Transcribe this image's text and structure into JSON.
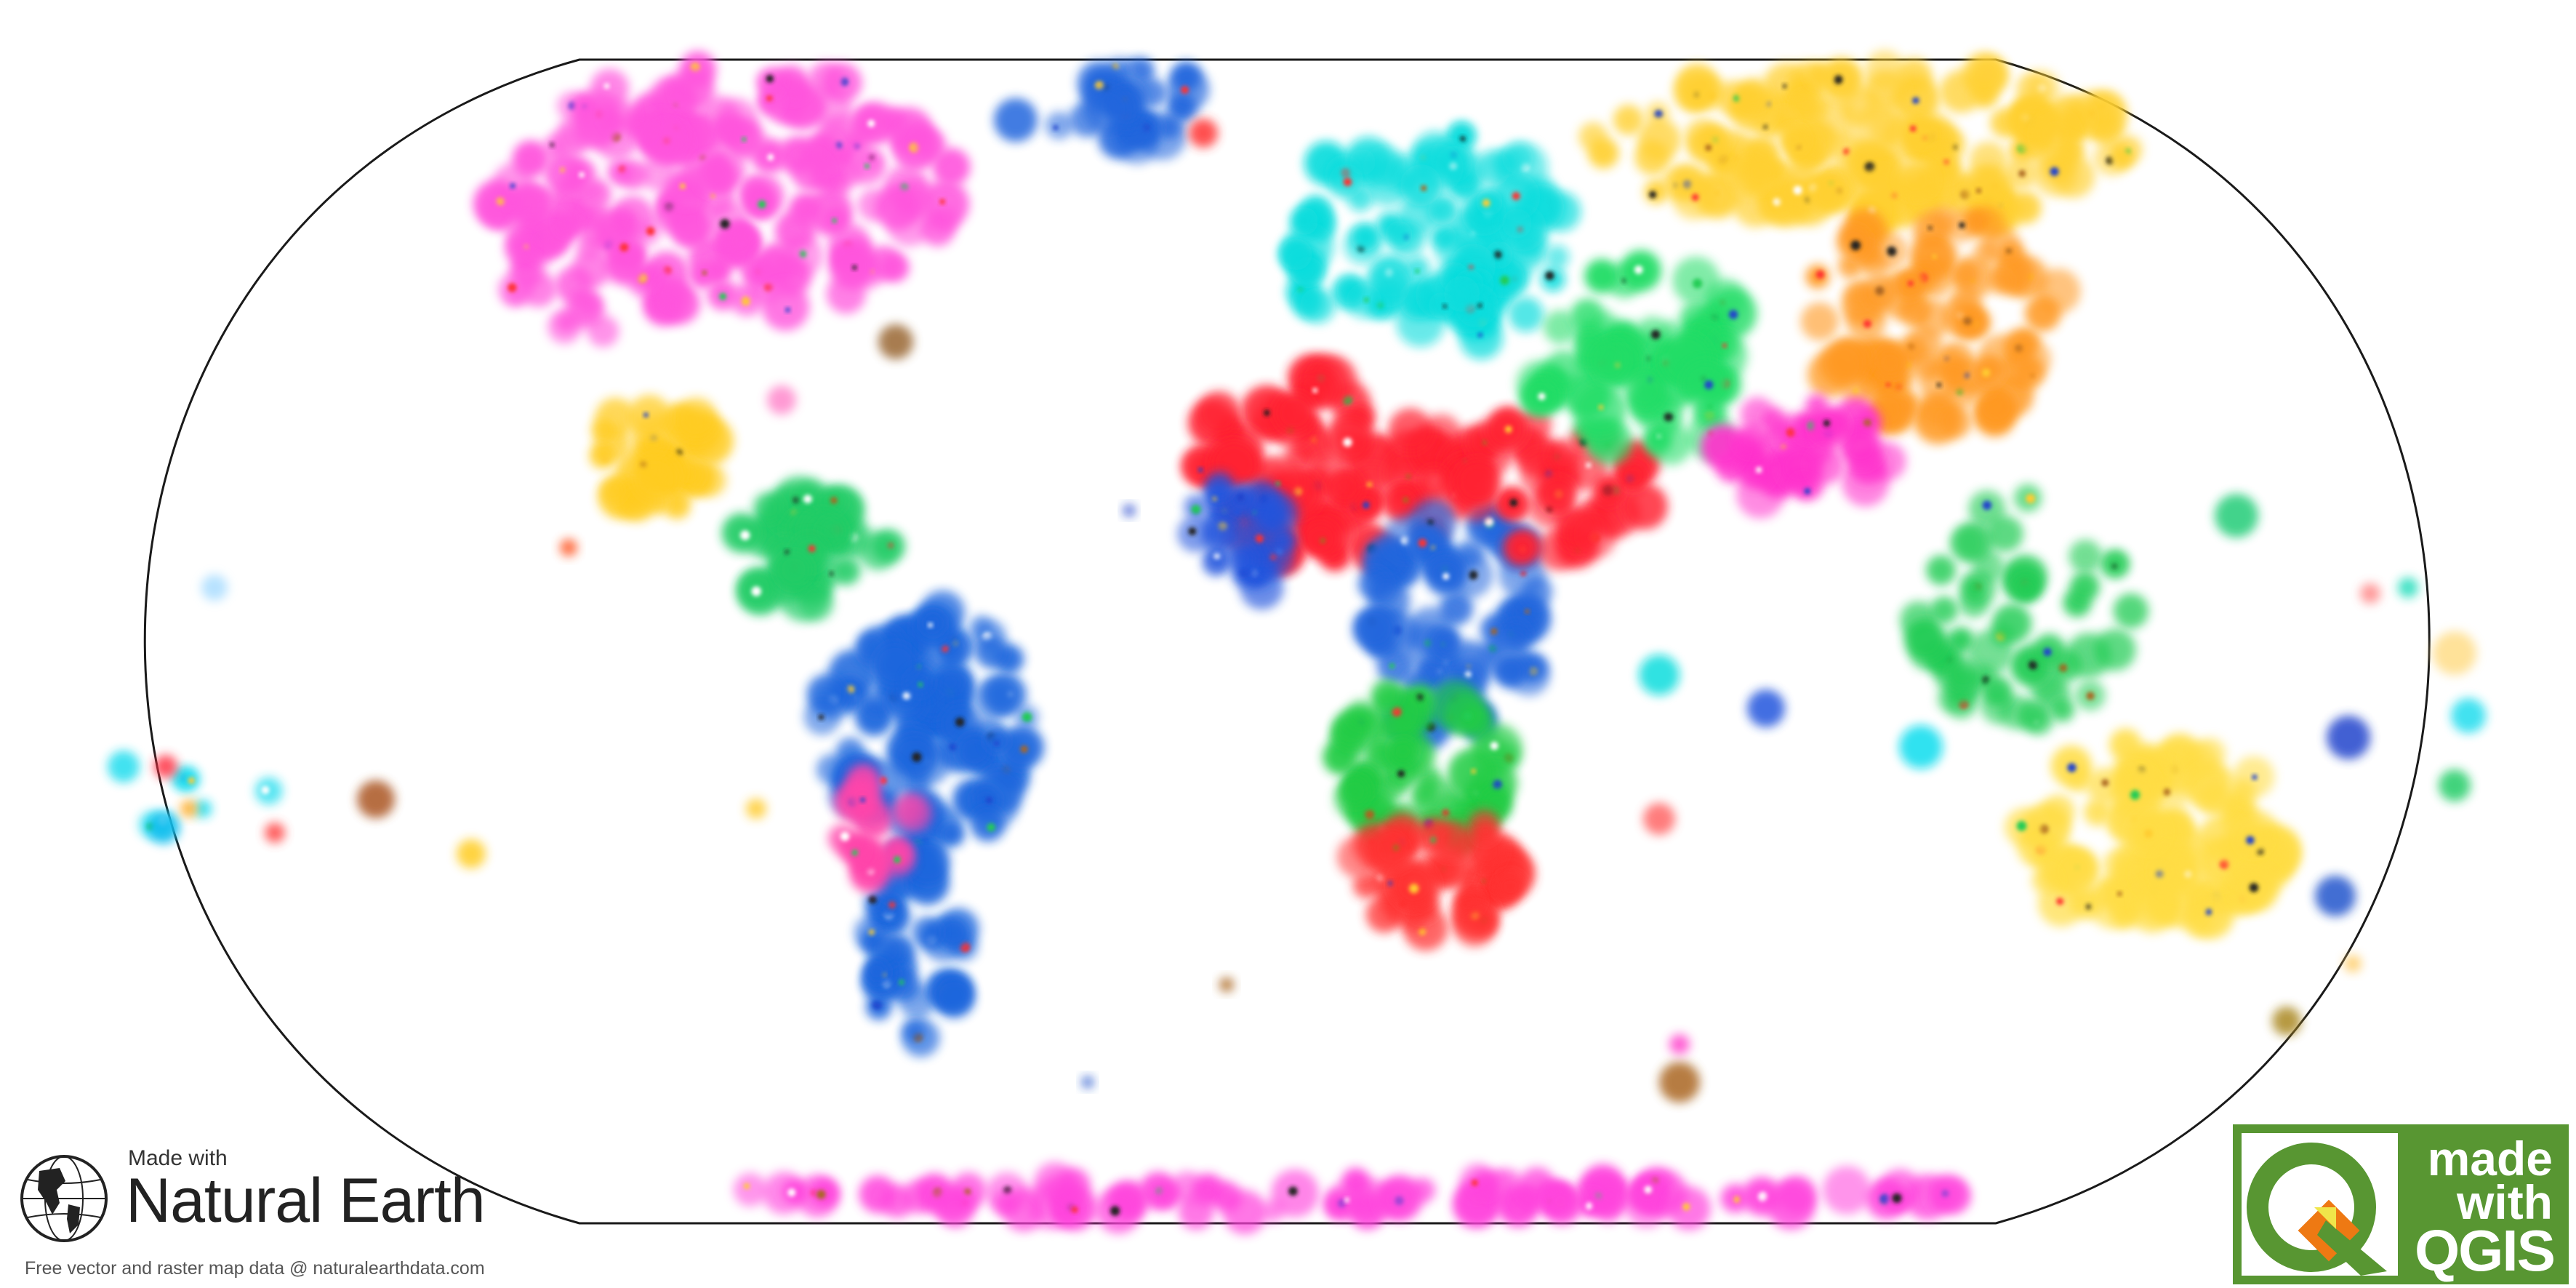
{
  "map": {
    "projection": "Natural Earth",
    "frame_color": "#1a1a1a",
    "background": "#ffffff",
    "marker_style": "blurred colored dots",
    "region_colors": {
      "north-america": "#ff55dd",
      "greenland": "#2266dd",
      "central-america": "#ffcc22",
      "caribbean-northern-south-america": "#22cc66",
      "south-america": "#1f66dd",
      "andes": "#ff44aa",
      "europe": "#11dddd",
      "north-africa": "#ff2233",
      "west-africa": "#2255dd",
      "east-africa": "#2266dd",
      "central-africa": "#22cc44",
      "southern-africa": "#ff3333",
      "middle-east": "#ff2233",
      "central-asia": "#22dd66",
      "russia": "#ffd033",
      "china": "#ff9922",
      "india": "#ff33cc",
      "southeast-asia": "#22cc55",
      "australia": "#ffdd44",
      "antarctica": "#ff44dd",
      "pacific-islands": "#22ddee"
    }
  },
  "natural_earth_badge": {
    "made_with": "Made with",
    "name": "Natural Earth",
    "credit": "Free vector and raster map data @ naturalearthdata.com",
    "icon": "globe-icon"
  },
  "qgis_badge": {
    "line1": "made",
    "line2": "with",
    "word": "QGIS",
    "icon": "qgis-logo-icon",
    "brand_green": "#589632",
    "brand_orange": "#ee7913",
    "brand_yellow": "#f0e64a"
  }
}
